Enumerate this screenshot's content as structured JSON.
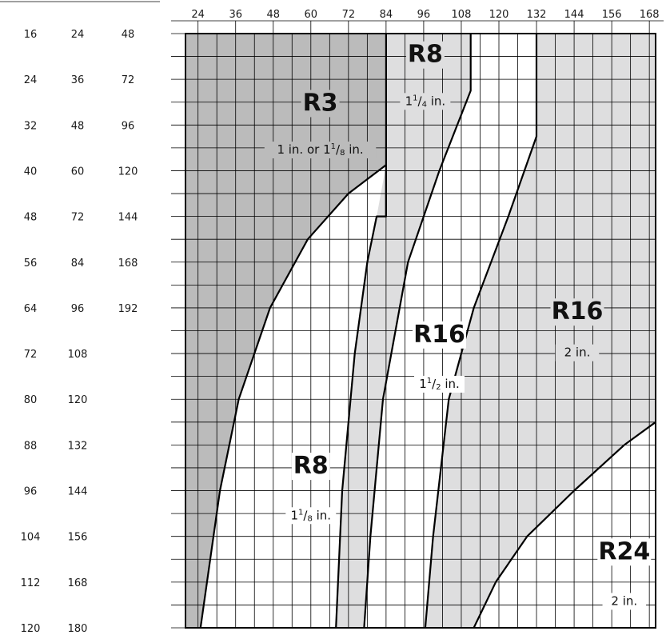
{
  "colors": {
    "r3_fill": "#bbbbbb",
    "light_fill": "#dededf",
    "white_fill": "#ffffff",
    "line": "#000000"
  },
  "chart_data": {
    "type": "area",
    "title": "",
    "xlabel": "",
    "ylabel": "",
    "x_ticks": [
      24,
      36,
      48,
      60,
      72,
      84,
      96,
      108,
      120,
      132,
      144,
      156,
      168
    ],
    "xlim": [
      20,
      170
    ],
    "ylim": [
      16,
      120
    ],
    "y_scales": [
      {
        "values": [
          16,
          24,
          32,
          40,
          48,
          56,
          64,
          72,
          80,
          88,
          96,
          104,
          112,
          120
        ]
      },
      {
        "values": [
          24,
          36,
          48,
          60,
          72,
          84,
          96,
          108,
          120,
          132,
          144,
          156,
          168,
          180
        ]
      },
      {
        "values": [
          48,
          72,
          96,
          120,
          144,
          168,
          192
        ]
      }
    ],
    "regions": [
      {
        "name": "R3",
        "size_label": "1 in. or 1⅛ in.",
        "size_parts": [
          "1 in. or 1",
          "1",
          "8",
          " in."
        ],
        "fill": "#bbbbbb"
      },
      {
        "name": "R8",
        "size_label": "1¼ in.",
        "size_parts": [
          "1",
          "1",
          "4",
          " in."
        ],
        "fill": "#dededf"
      },
      {
        "name": "R8",
        "size_label": "1⅛ in.",
        "size_parts": [
          "1",
          "1",
          "8",
          " in."
        ],
        "fill": "#ffffff"
      },
      {
        "name": "R16",
        "size_label": "1½ in.",
        "size_parts": [
          "1",
          "1",
          "2",
          " in."
        ],
        "fill": "#ffffff"
      },
      {
        "name": "R16",
        "size_label": "2 in.",
        "size_parts": [
          "2 in."
        ],
        "fill": "#dededf"
      },
      {
        "name": "R24",
        "size_label": "2 in.",
        "size_parts": [
          "2 in."
        ],
        "fill": "#ffffff"
      }
    ],
    "boundaries": [
      {
        "name": "R3 limit",
        "points": [
          [
            24.8,
            120
          ],
          [
            31,
            96
          ],
          [
            37,
            80
          ],
          [
            47,
            64
          ],
          [
            59,
            52
          ],
          [
            72,
            44
          ],
          [
            84,
            39
          ],
          [
            84,
            48
          ]
        ]
      },
      {
        "name": "R8 1⅛ limit",
        "points": [
          [
            68,
            120
          ],
          [
            70,
            96
          ],
          [
            74,
            72
          ],
          [
            78,
            56
          ],
          [
            81,
            48
          ],
          [
            84,
            48
          ],
          [
            84,
            16
          ]
        ]
      },
      {
        "name": "R8 1¼ limit",
        "points": [
          [
            77,
            120
          ],
          [
            79,
            104
          ],
          [
            83,
            80
          ],
          [
            91,
            56
          ],
          [
            101,
            40
          ],
          [
            111,
            26
          ],
          [
            111,
            16
          ]
        ]
      },
      {
        "name": "R16 1½ limit",
        "points": [
          [
            96.5,
            120
          ],
          [
            99,
            104
          ],
          [
            104,
            80
          ],
          [
            112,
            64
          ],
          [
            123,
            48
          ],
          [
            132,
            34
          ],
          [
            132,
            16
          ]
        ]
      },
      {
        "name": "R16 2 in. limit",
        "points": [
          [
            112,
            120
          ],
          [
            119,
            112
          ],
          [
            129,
            104
          ],
          [
            144,
            96
          ],
          [
            160,
            88
          ],
          [
            170,
            84
          ]
        ]
      }
    ]
  }
}
